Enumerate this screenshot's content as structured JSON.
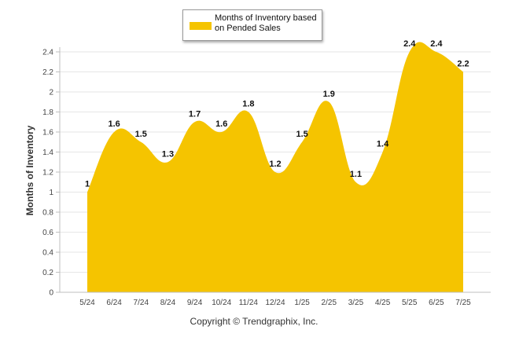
{
  "chart_data": {
    "type": "area",
    "categories": [
      "5/24",
      "6/24",
      "7/24",
      "8/24",
      "9/24",
      "10/24",
      "11/24",
      "12/24",
      "1/25",
      "2/25",
      "3/25",
      "4/25",
      "5/25",
      "6/25",
      "7/25"
    ],
    "series": [
      {
        "name": "Months of Inventory based on Pended Sales",
        "values": [
          1,
          1.6,
          1.5,
          1.3,
          1.7,
          1.6,
          1.8,
          1.2,
          1.5,
          1.9,
          1.1,
          1.4,
          2.4,
          2.4,
          2.2
        ],
        "labels": [
          "1",
          "1.6",
          "1.5",
          "1.3",
          "1.7",
          "1.6",
          "1.8",
          "1.2",
          "1.5",
          "1.9",
          "1.1",
          "1.4",
          "2.4",
          "2.4",
          "2.2"
        ]
      }
    ],
    "ylabel": "Months of Inventory",
    "xlabel": "",
    "ylim": [
      0,
      2.4
    ],
    "yticks": [
      "0",
      "0.2",
      "0.4",
      "0.6",
      "0.8",
      "1",
      "1.2",
      "1.4",
      "1.6",
      "1.8",
      "2",
      "2.2",
      "2.4"
    ],
    "grid": true,
    "legend_position": "top-center",
    "colors": {
      "fill": "#f5c400",
      "grid": "#e6e6e6",
      "axis": "#bfbfbf"
    }
  },
  "legend": {
    "label": "Months of Inventory based on Pended Sales"
  },
  "footer": {
    "copyright": "Copyright © Trendgraphix, Inc."
  }
}
